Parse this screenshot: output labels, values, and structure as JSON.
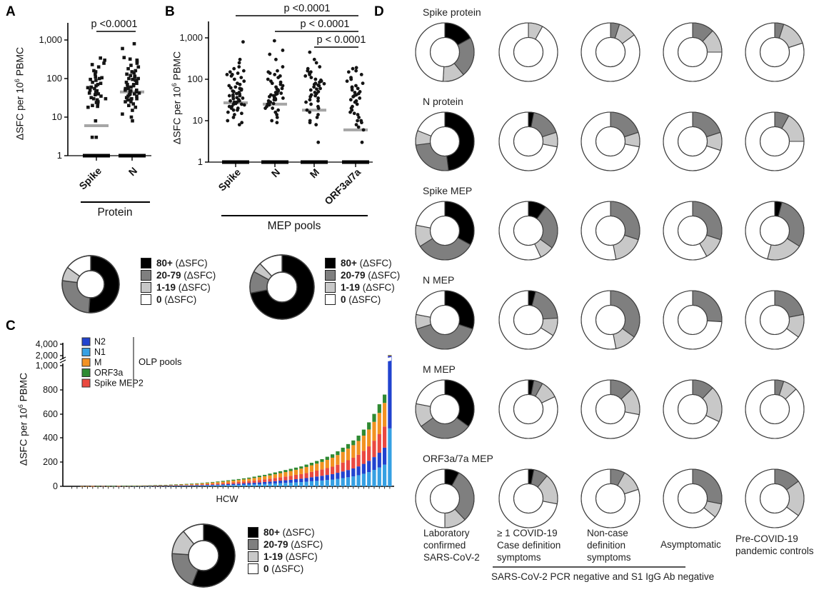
{
  "panel_letters": {
    "a": "A",
    "b": "B",
    "c": "C",
    "d": "D"
  },
  "ylabel_parts": {
    "pre": "ΔSFC per 10",
    "sup": "6",
    "post": " PBMC"
  },
  "chart_data": {
    "panel_a": {
      "type": "scatter",
      "y_scale": "log",
      "p_value": "p <0.0001",
      "yticks": [
        "1,000",
        "100",
        "10",
        "1"
      ],
      "xaxis_title": "Protein",
      "marker": "square",
      "groups": [
        {
          "label": "Spike",
          "median": 6,
          "baseline_cluster": 1,
          "values": [
            3,
            3,
            8,
            18,
            19,
            20,
            22,
            24,
            25,
            28,
            30,
            30,
            32,
            35,
            38,
            40,
            42,
            45,
            48,
            50,
            55,
            58,
            60,
            65,
            70,
            75,
            80,
            90,
            95,
            100,
            105,
            110,
            130,
            150,
            160,
            200,
            230,
            250,
            300,
            340
          ]
        },
        {
          "label": "N",
          "median": 45,
          "baseline_cluster": 1,
          "values": [
            8,
            10,
            12,
            15,
            18,
            20,
            22,
            25,
            25,
            28,
            28,
            30,
            30,
            32,
            35,
            35,
            38,
            40,
            40,
            42,
            45,
            45,
            48,
            50,
            50,
            55,
            55,
            60,
            60,
            65,
            70,
            70,
            75,
            80,
            85,
            90,
            95,
            100,
            100,
            110,
            115,
            120,
            130,
            140,
            150,
            160,
            180,
            200,
            220,
            250,
            280,
            300,
            320,
            350,
            600,
            800
          ]
        }
      ]
    },
    "panel_b": {
      "type": "scatter",
      "y_scale": "log",
      "p_values": [
        "p <0.0001",
        "p < 0.0001",
        "p < 0.0001"
      ],
      "yticks": [
        "1,000",
        "100",
        "10",
        "1"
      ],
      "xaxis_title": "MEP pools",
      "marker": "circle",
      "groups": [
        {
          "label": "Spike",
          "median": 27,
          "baseline_cluster": 1,
          "values": [
            8,
            9,
            10,
            12,
            14,
            15,
            16,
            18,
            18,
            20,
            20,
            22,
            22,
            24,
            25,
            25,
            26,
            28,
            28,
            30,
            30,
            32,
            34,
            35,
            36,
            38,
            40,
            40,
            42,
            44,
            45,
            48,
            50,
            52,
            55,
            58,
            60,
            62,
            65,
            70,
            75,
            80,
            90,
            100,
            110,
            120,
            130,
            130,
            140,
            150,
            160,
            180,
            200,
            250,
            300,
            800
          ]
        },
        {
          "label": "N",
          "median": 25,
          "baseline_cluster": 1,
          "values": [
            9,
            10,
            12,
            14,
            16,
            18,
            20,
            20,
            22,
            24,
            25,
            25,
            26,
            28,
            28,
            30,
            32,
            32,
            34,
            35,
            36,
            38,
            40,
            40,
            42,
            44,
            45,
            46,
            48,
            50,
            52,
            55,
            58,
            60,
            65,
            70,
            75,
            80,
            85,
            90,
            100,
            110,
            120,
            130,
            140,
            150,
            160,
            200,
            300,
            400,
            500,
            850
          ]
        },
        {
          "label": "M",
          "median": 18,
          "baseline_cluster": 1,
          "values": [
            3,
            8,
            9,
            10,
            12,
            14,
            16,
            18,
            20,
            22,
            25,
            28,
            30,
            32,
            35,
            38,
            40,
            42,
            45,
            48,
            50,
            55,
            58,
            60,
            65,
            70,
            72,
            75,
            78,
            80,
            85,
            90,
            95,
            100,
            110,
            120,
            130,
            140,
            150,
            160,
            180,
            200,
            250,
            300,
            450
          ]
        },
        {
          "label": "ORF3a/7a",
          "median": 6,
          "baseline_cluster": 1,
          "values": [
            3,
            6,
            7,
            8,
            9,
            10,
            10,
            12,
            14,
            15,
            16,
            18,
            20,
            22,
            25,
            28,
            30,
            32,
            35,
            38,
            40,
            42,
            45,
            48,
            50,
            55,
            60,
            62,
            65,
            70,
            80,
            90,
            100,
            110,
            130,
            150,
            160,
            180,
            190
          ]
        }
      ]
    },
    "sfc_legend": {
      "categories": [
        {
          "range": "80+",
          "suffix": "(ΔSFC)",
          "color": "#000000"
        },
        {
          "range": "20-79",
          "suffix": "(ΔSFC)",
          "color": "#7f7f7f"
        },
        {
          "range": "1-19",
          "suffix": "(ΔSFC)",
          "color": "#c8c8c8"
        },
        {
          "range": "0",
          "suffix": "(ΔSFC)",
          "color": "#ffffff"
        }
      ]
    },
    "donut_a": {
      "type": "donut",
      "values": [
        51,
        26,
        8,
        15
      ]
    },
    "donut_b": {
      "type": "donut",
      "values": [
        72,
        11,
        5,
        12
      ]
    },
    "donut_c": {
      "type": "donut",
      "values": [
        56,
        20,
        13,
        11
      ]
    },
    "panel_c": {
      "type": "stacked-bar",
      "xlabel": "HCW",
      "yticks": [
        "4,000",
        "2,000",
        "1,000",
        "800",
        "600",
        "400",
        "200",
        "0"
      ],
      "legend_bracket_label": "OLP pools",
      "legend": [
        {
          "label": "N2",
          "color": "#2143cf"
        },
        {
          "label": "N1",
          "color": "#36a0e3"
        },
        {
          "label": "M",
          "color": "#f29222"
        },
        {
          "label": "ORF3a",
          "color": "#2f8a32"
        },
        {
          "label": "Spike MEP2",
          "color": "#ea4940"
        }
      ],
      "stack_order": [
        "N1",
        "N2",
        "Spike MEP2",
        "M",
        "ORF3a"
      ],
      "bars": [
        [
          0,
          0,
          0,
          0,
          0
        ],
        [
          0,
          0,
          0,
          0,
          0
        ],
        [
          0,
          0,
          0,
          1,
          0
        ],
        [
          0,
          0,
          0,
          1,
          0
        ],
        [
          0,
          0,
          1,
          1,
          0
        ],
        [
          0,
          0,
          0,
          1,
          1
        ],
        [
          0,
          1,
          0,
          1,
          0
        ],
        [
          0,
          0,
          1,
          1,
          1
        ],
        [
          1,
          0,
          0,
          1,
          1
        ],
        [
          0,
          1,
          1,
          1,
          0
        ],
        [
          1,
          0,
          1,
          1,
          1
        ],
        [
          0,
          1,
          1,
          1,
          1
        ],
        [
          1,
          1,
          1,
          1,
          1
        ],
        [
          1,
          1,
          1,
          2,
          1
        ],
        [
          1,
          1,
          2,
          2,
          1
        ],
        [
          1,
          2,
          2,
          2,
          1
        ],
        [
          2,
          1,
          2,
          3,
          2
        ],
        [
          2,
          2,
          2,
          3,
          2
        ],
        [
          2,
          2,
          3,
          3,
          2
        ],
        [
          2,
          3,
          3,
          4,
          2
        ],
        [
          3,
          3,
          3,
          4,
          3
        ],
        [
          3,
          3,
          4,
          5,
          3
        ],
        [
          4,
          3,
          4,
          5,
          4
        ],
        [
          4,
          4,
          5,
          6,
          4
        ],
        [
          5,
          4,
          5,
          7,
          4
        ],
        [
          5,
          5,
          6,
          8,
          4
        ],
        [
          6,
          5,
          7,
          9,
          5
        ],
        [
          7,
          6,
          8,
          10,
          5
        ],
        [
          8,
          6,
          9,
          11,
          6
        ],
        [
          9,
          7,
          10,
          12,
          7
        ],
        [
          10,
          8,
          11,
          14,
          7
        ],
        [
          11,
          9,
          12,
          15,
          8
        ],
        [
          12,
          10,
          14,
          16,
          8
        ],
        [
          13,
          11,
          15,
          18,
          9
        ],
        [
          15,
          12,
          16,
          20,
          9
        ],
        [
          16,
          13,
          18,
          22,
          11
        ],
        [
          18,
          14,
          20,
          24,
          12
        ],
        [
          20,
          16,
          22,
          26,
          11
        ],
        [
          22,
          17,
          24,
          28,
          14
        ],
        [
          24,
          19,
          26,
          31,
          15
        ],
        [
          26,
          21,
          28,
          34,
          16
        ],
        [
          28,
          22,
          31,
          37,
          17
        ],
        [
          30,
          24,
          33,
          40,
          18
        ],
        [
          33,
          26,
          36,
          42,
          18
        ],
        [
          35,
          28,
          38,
          46,
          18
        ],
        [
          38,
          30,
          42,
          50,
          20
        ],
        [
          42,
          33,
          45,
          54,
          21
        ],
        [
          45,
          36,
          49,
          58,
          22
        ],
        [
          48,
          39,
          53,
          62,
          23
        ],
        [
          52,
          42,
          57,
          68,
          26
        ],
        [
          56,
          45,
          62,
          74,
          28
        ],
        [
          62,
          50,
          67,
          80,
          31
        ],
        [
          68,
          55,
          74,
          88,
          35
        ],
        [
          75,
          60,
          81,
          96,
          38
        ],
        [
          82,
          66,
          89,
          104,
          39
        ],
        [
          92,
          73,
          97,
          114,
          44
        ],
        [
          104,
          82,
          108,
          126,
          50
        ],
        [
          118,
          93,
          120,
          140,
          59
        ],
        [
          136,
          106,
          136,
          156,
          66
        ],
        [
          156,
          122,
          154,
          176,
          72
        ],
        [
          180,
          140,
          175,
          196,
          69
        ],
        [
          480,
          1510,
          20,
          80,
          10
        ]
      ]
    },
    "panel_d": {
      "type": "donut-grid",
      "ring_colors": [
        "#000000",
        "#7f7f7f",
        "#c8c8c8",
        "#ffffff"
      ],
      "rows": [
        {
          "label": "Spike protein",
          "donuts": [
            [
              17,
              22,
              12,
              49
            ],
            [
              0,
              0,
              8,
              92
            ],
            [
              0,
              5,
              10,
              85
            ],
            [
              0,
              12,
              13,
              75
            ],
            [
              0,
              5,
              15,
              80
            ]
          ]
        },
        {
          "label": "N protein",
          "donuts": [
            [
              48,
              25,
              8,
              19
            ],
            [
              3,
              17,
              8,
              72
            ],
            [
              0,
              20,
              8,
              72
            ],
            [
              0,
              20,
              10,
              70
            ],
            [
              0,
              8,
              17,
              75
            ]
          ]
        },
        {
          "label": "Spike MEP",
          "donuts": [
            [
              33,
              33,
              12,
              22
            ],
            [
              10,
              25,
              8,
              57
            ],
            [
              0,
              30,
              17,
              53
            ],
            [
              0,
              30,
              12,
              58
            ],
            [
              4,
              30,
              20,
              46
            ]
          ]
        },
        {
          "label": "N MEP",
          "donuts": [
            [
              30,
              40,
              8,
              22
            ],
            [
              4,
              20,
              10,
              66
            ],
            [
              0,
              35,
              12,
              53
            ],
            [
              0,
              26,
              0,
              74
            ],
            [
              0,
              22,
              13,
              65
            ]
          ]
        },
        {
          "label": "M MEP",
          "donuts": [
            [
              35,
              30,
              13,
              22
            ],
            [
              3,
              5,
              10,
              82
            ],
            [
              0,
              13,
              15,
              72
            ],
            [
              0,
              12,
              20,
              68
            ],
            [
              0,
              5,
              8,
              87
            ]
          ]
        },
        {
          "label": "ORF3a/7a MEP",
          "donuts": [
            [
              8,
              30,
              12,
              50
            ],
            [
              3,
              8,
              17,
              72
            ],
            [
              0,
              8,
              12,
              80
            ],
            [
              0,
              28,
              8,
              64
            ],
            [
              0,
              15,
              20,
              65
            ]
          ]
        }
      ],
      "columns": [
        [
          "Laboratory",
          "confirmed",
          "SARS-CoV-2"
        ],
        [
          "≥ 1 COVID-19",
          "Case definition",
          "symptoms"
        ],
        [
          "Non-case",
          "definition",
          "symptoms"
        ],
        [
          "Asymptomatic"
        ],
        [
          "Pre-COVID-19",
          "pandemic controls"
        ]
      ],
      "footer": "SARS-CoV-2 PCR negative and S1 IgG Ab negative"
    }
  }
}
